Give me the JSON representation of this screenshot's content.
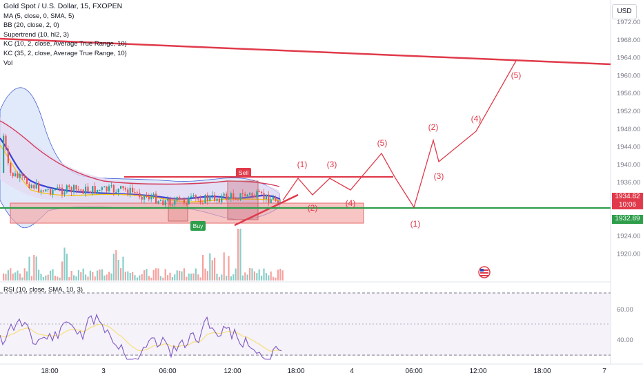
{
  "legend": {
    "title": "Gold Spot / U.S. Dollar, 15, FXOPEN",
    "indicators": [
      "MA (5, close, 0, SMA, 5)",
      "BB (20, close, 2, 0)",
      "Supertrend (10, hl2, 3)",
      "KC (10, 2, close, Average True Range, 10)",
      "KC (35, 2, close, Average True Range, 10)",
      "Vol"
    ],
    "rsi": "RSI (10, close, SMA, 10, 3)"
  },
  "price_axis": {
    "currency": "USD",
    "ticks": [
      "1972.00",
      "1968.00",
      "1964.00",
      "1960.00",
      "1956.00",
      "1952.00",
      "1948.00",
      "1944.00",
      "1940.00",
      "1936.00",
      "1932.00",
      "1928.00",
      "1924.00",
      "1920.00"
    ]
  },
  "rsi_axis": {
    "ticks": [
      "60.00",
      "40.00"
    ]
  },
  "badges": {
    "last_price": "1934.82",
    "countdown": "10:06",
    "support": "1932.89"
  },
  "markers": {
    "sell": "Sell",
    "buy": "Buy"
  },
  "time_axis": [
    "18:00",
    "3",
    "06:00",
    "12:00",
    "18:00",
    "4",
    "06:00",
    "12:00",
    "18:00",
    "7"
  ],
  "colors": {
    "resistance": "#e03a4a",
    "support": "#2e9e4a",
    "bullish": "#26a69a",
    "bearish": "#ef5350",
    "rsi_line": "#7e57c2",
    "rsi_signal": "#f7e07a",
    "band_fill": "#c9d8f5",
    "keltner_fill": "#e3d9f2"
  },
  "chart_data": {
    "type": "line",
    "symbol": "XAUUSD",
    "interval": "15",
    "ylim": [
      1917,
      1975
    ],
    "price_levels": {
      "support_line": 1932.89,
      "last_price": 1934.82,
      "range_top": 1939.5,
      "demand_zone": [
        1930.6,
        1933.6
      ]
    },
    "descending_trendline": [
      {
        "x": "2 06:00",
        "y": 1968.6
      },
      {
        "x": "7 00:00",
        "y": 1963.0
      }
    ],
    "ascending_trendline": [
      {
        "x": "3 12:00",
        "y": 1931.0
      },
      {
        "x": "3 18:30",
        "y": 1939.0
      }
    ],
    "waves_short": [
      {
        "label": "(1)",
        "x": "3 19:30",
        "y": 1939.4
      },
      {
        "label": "(2)",
        "x": "3 21:00",
        "y": 1936.2
      },
      {
        "label": "(3)",
        "x": "3 23:00",
        "y": 1939.4
      },
      {
        "label": "(4)",
        "x": "4 00:30",
        "y": 1937.0
      },
      {
        "label": "(5)",
        "x": "4 03:00",
        "y": 1944.6
      }
    ],
    "waves_long": [
      {
        "label": "(1)",
        "x": "4 06:00",
        "y": 1932.9
      },
      {
        "label": "(2)",
        "x": "4 08:30",
        "y": 1947.6
      },
      {
        "label": "(3)",
        "x": "4 09:30",
        "y": 1942.8
      },
      {
        "label": "(4)",
        "x": "4 12:00",
        "y": 1948.6
      },
      {
        "label": "(5)",
        "x": "4 16:00",
        "y": 1963.9
      }
    ],
    "rsi": {
      "ylim": [
        22,
        78
      ],
      "levels": [
        30,
        70
      ]
    }
  }
}
